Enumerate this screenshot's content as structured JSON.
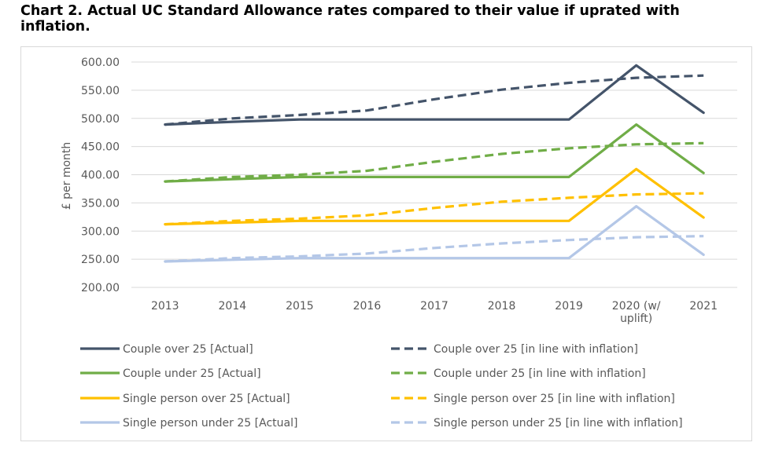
{
  "title": "Chart 2. Actual UC Standard Allowance rates compared to their value if uprated with inflation.",
  "chart_data": {
    "type": "line",
    "title": "Chart 2. Actual UC Standard Allowance rates compared to their value if uprated with inflation.",
    "xlabel": "",
    "ylabel": "£ per month",
    "categories": [
      "2013",
      "2014",
      "2015",
      "2016",
      "2017",
      "2018",
      "2019",
      "2020 (w/ uplift)",
      "2021"
    ],
    "y_ticks": [
      "600.00",
      "550.00",
      "500.00",
      "450.00",
      "400.00",
      "350.00",
      "300.00",
      "250.00",
      "200.00"
    ],
    "ylim": [
      200,
      600
    ],
    "grid": true,
    "legend_position": "bottom",
    "series": [
      {
        "name": "Couple over 25 [Actual]",
        "color": "#44546a",
        "dash": false,
        "values": [
          489,
          494,
          498,
          498,
          498,
          498,
          498,
          594,
          510
        ]
      },
      {
        "name": "Couple over 25 [in line with inflation]",
        "color": "#44546a",
        "dash": true,
        "values": [
          489,
          500,
          506,
          514,
          534,
          551,
          563,
          572,
          576
        ]
      },
      {
        "name": "Couple under 25 [Actual]",
        "color": "#70ad47",
        "dash": false,
        "values": [
          388,
          392,
          396,
          396,
          396,
          396,
          396,
          489,
          403
        ]
      },
      {
        "name": "Couple under 25 [in line with inflation]",
        "color": "#70ad47",
        "dash": true,
        "values": [
          388,
          396,
          400,
          407,
          423,
          437,
          447,
          454,
          456
        ]
      },
      {
        "name": "Single person over 25 [Actual]",
        "color": "#ffc000",
        "dash": false,
        "values": [
          312,
          315,
          318,
          318,
          318,
          318,
          318,
          410,
          324
        ]
      },
      {
        "name": "Single person over 25 [in line with inflation]",
        "color": "#ffc000",
        "dash": true,
        "values": [
          312,
          318,
          322,
          328,
          341,
          352,
          359,
          365,
          367
        ]
      },
      {
        "name": "Single person under 25 [Actual]",
        "color": "#b4c7e7",
        "dash": false,
        "values": [
          246,
          249,
          252,
          252,
          252,
          252,
          252,
          344,
          258
        ]
      },
      {
        "name": "Single person under 25 [in line with inflation]",
        "color": "#b4c7e7",
        "dash": true,
        "values": [
          246,
          252,
          255,
          260,
          270,
          278,
          284,
          289,
          291
        ]
      }
    ]
  }
}
